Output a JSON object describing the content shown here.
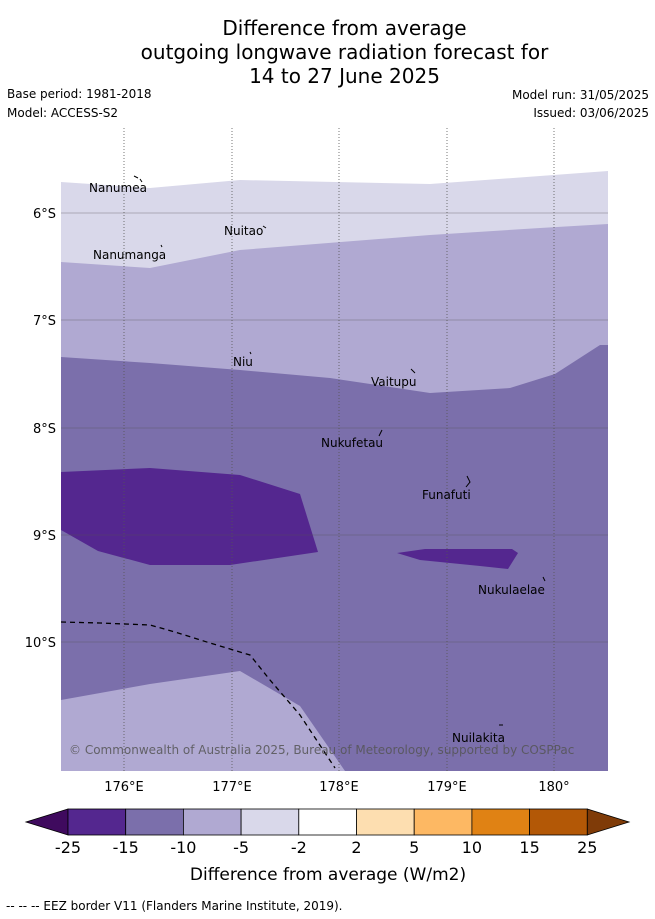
{
  "header": {
    "title_lines": [
      "Difference from average",
      "outgoing longwave radiation forecast for",
      "14 to 27 June 2025"
    ],
    "base_period": "Base period: 1981-2018",
    "model": "Model: ACCESS-S2",
    "model_run": "Model run: 31/05/2025",
    "issued": "Issued: 03/06/2025"
  },
  "map": {
    "lat_labels": [
      "6°S",
      "7°S",
      "8°S",
      "9°S",
      "10°S"
    ],
    "lon_labels": [
      "176°E",
      "177°E",
      "178°E",
      "179°E",
      "180°"
    ],
    "places": [
      {
        "name": "Nanumea"
      },
      {
        "name": "Nuitao"
      },
      {
        "name": "Nanumanga"
      },
      {
        "name": "Niu"
      },
      {
        "name": "Vaitupu"
      },
      {
        "name": "Nukufetau"
      },
      {
        "name": "Funafuti"
      },
      {
        "name": "Nukulaelae"
      },
      {
        "name": "Nuilakita"
      }
    ],
    "copyright": "© Commonwealth of Australia 2025, Bureau of Meteorology, supported by COSPPac"
  },
  "colorbar": {
    "ticks": [
      "-25",
      "-15",
      "-10",
      "-5",
      "-2",
      "2",
      "5",
      "10",
      "15",
      "25"
    ],
    "colors": [
      "#3f0a5e",
      "#54278f",
      "#7b6fab",
      "#b0a9d2",
      "#d9d8ea",
      "#ffffff",
      "#fddeb0",
      "#fdb863",
      "#e08214",
      "#b35806",
      "#7f3b08"
    ],
    "label": "Difference from average (W/m2)"
  },
  "footer": {
    "legend_text": "-- -- -- EEZ border V11 (Flanders Marine Institute, 2019)."
  }
}
